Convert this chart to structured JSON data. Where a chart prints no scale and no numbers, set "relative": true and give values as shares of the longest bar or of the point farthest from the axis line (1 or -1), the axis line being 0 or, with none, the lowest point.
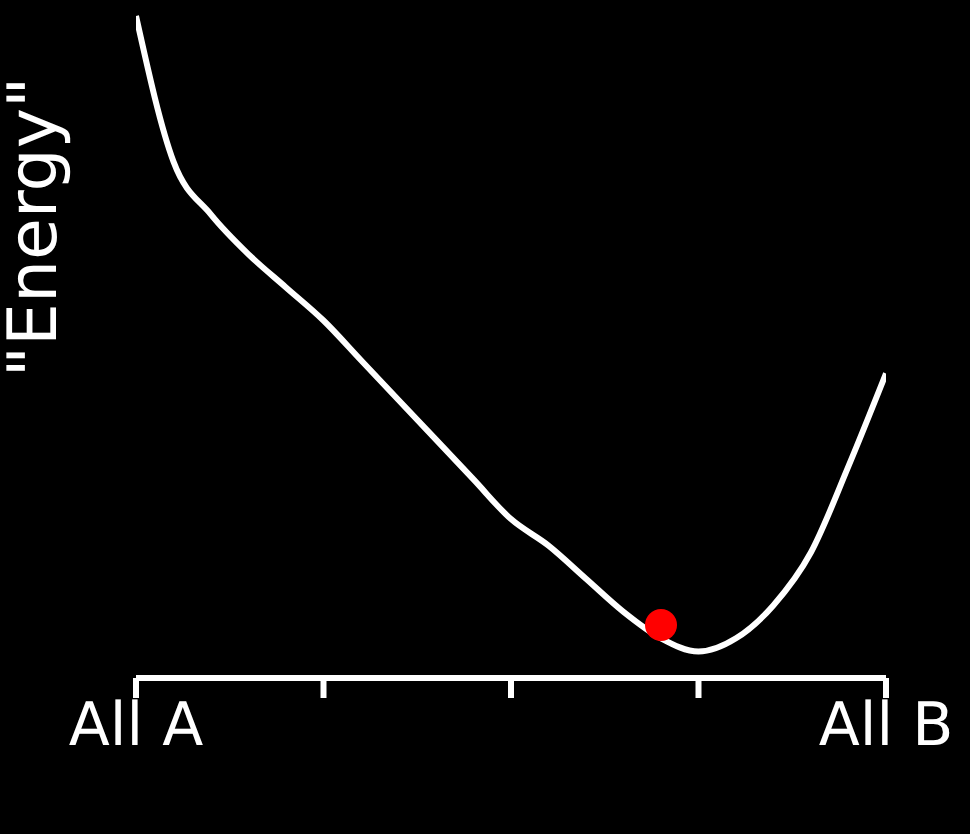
{
  "chart_data": {
    "type": "line",
    "relative": true,
    "ylabel": "\"Energy\"",
    "categories": [
      "All A",
      null,
      null,
      null,
      null,
      null,
      null,
      null,
      null,
      null,
      null,
      null,
      null,
      null,
      null,
      null,
      null,
      null,
      null,
      null,
      "All B"
    ],
    "marker": "none",
    "line_style": "solid",
    "series": [
      {
        "color": "#ffffff",
        "values": [
          1.0,
          0.78,
          0.7,
          0.64,
          0.59,
          0.54,
          0.48,
          0.42,
          0.36,
          0.3,
          0.24,
          0.2,
          0.15,
          0.1,
          0.06,
          0.04,
          0.06,
          0.11,
          0.19,
          0.32,
          0.46
        ]
      },
      {
        "type": "scatter",
        "marker": "circle",
        "color": "#ff0000",
        "values": [
          null,
          null,
          null,
          null,
          null,
          null,
          null,
          null,
          null,
          null,
          null,
          null,
          null,
          null,
          0.08,
          null,
          null,
          null,
          null,
          null,
          null
        ]
      }
    ]
  }
}
